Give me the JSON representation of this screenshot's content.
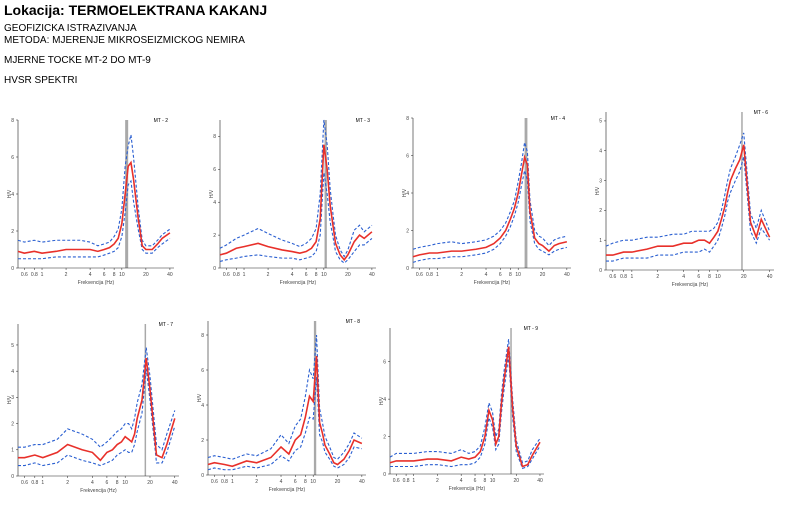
{
  "header": {
    "title": "Lokacija: TERMOELEKTRANA KAKANJ",
    "line1": "GEOFIZICKA ISTRAZIVANJA",
    "line2": "METODA: MJERENJE MIKROSEIZMICKOG NEMIRA",
    "line3": "MJERNE TOCKE MT-2 DO MT-9",
    "line4": "HVSR SPEKTRI"
  },
  "colors": {
    "mean": "#e8302a",
    "bounds": "#2a5fd1",
    "peak_band": "#9a9a9a",
    "axis": "#222222"
  },
  "axis_text": {
    "xlabel": "Frekvencija (Hz)",
    "ylabel": "H/V"
  },
  "chart_data": [
    {
      "type": "line",
      "name": "MT - 2",
      "xscale": "log",
      "xlim": [
        0.5,
        45
      ],
      "ylim": [
        0,
        8
      ],
      "xticks": [
        0.6,
        0.8,
        1,
        2,
        4,
        6,
        8,
        10,
        20,
        40
      ],
      "xticklabels": [
        "0.6",
        "0.8",
        "1",
        "2",
        "4",
        "6",
        "8",
        "10",
        "20",
        "40"
      ],
      "yticks": [
        0,
        2,
        4,
        6,
        8
      ],
      "peak": 11.5,
      "peak_band": [
        11,
        12
      ],
      "x": [
        0.5,
        0.6,
        0.8,
        1,
        1.5,
        2,
        3,
        4,
        5,
        6,
        7,
        8,
        9,
        10,
        11,
        12,
        13,
        14,
        16,
        18,
        20,
        24,
        28,
        32,
        40
      ],
      "series": [
        {
          "name": "",
          "role": "mean",
          "values": [
            0.9,
            0.8,
            0.9,
            0.8,
            0.9,
            1.0,
            1.0,
            1.0,
            0.9,
            1.0,
            1.1,
            1.3,
            1.6,
            2.4,
            4.0,
            5.5,
            5.7,
            4.8,
            2.7,
            1.2,
            1.0,
            1.0,
            1.3,
            1.6,
            1.9
          ]
        },
        {
          "name": "",
          "role": "upper",
          "values": [
            1.5,
            1.4,
            1.5,
            1.4,
            1.5,
            1.5,
            1.5,
            1.4,
            1.2,
            1.3,
            1.4,
            1.7,
            2.1,
            3.2,
            5.5,
            6.6,
            7.2,
            6.0,
            3.3,
            1.5,
            1.2,
            1.2,
            1.5,
            1.8,
            2.1
          ]
        },
        {
          "name": "",
          "role": "lower",
          "values": [
            0.5,
            0.5,
            0.5,
            0.5,
            0.6,
            0.6,
            0.6,
            0.6,
            0.6,
            0.7,
            0.8,
            0.9,
            1.1,
            1.7,
            3.0,
            4.5,
            4.7,
            3.6,
            2.1,
            1.0,
            0.8,
            0.8,
            1.1,
            1.3,
            1.6
          ]
        }
      ]
    },
    {
      "type": "line",
      "name": "MT - 3",
      "xscale": "log",
      "xlim": [
        0.5,
        45
      ],
      "ylim": [
        0,
        9
      ],
      "xticks": [
        0.6,
        0.8,
        1,
        2,
        4,
        6,
        8,
        10,
        20,
        40
      ],
      "xticklabels": [
        "0.6",
        "0.8",
        "1",
        "2",
        "4",
        "6",
        "8",
        "10",
        "20",
        "40"
      ],
      "yticks": [
        0,
        2,
        4,
        6,
        8
      ],
      "peak": 10.5,
      "peak_band": [
        10.2,
        10.9
      ],
      "x": [
        0.5,
        0.6,
        0.8,
        1,
        1.5,
        2,
        3,
        4,
        5,
        6,
        7,
        8,
        9,
        10,
        11,
        12,
        13,
        14,
        16,
        18,
        20,
        24,
        28,
        32,
        40
      ],
      "series": [
        {
          "name": "",
          "role": "mean",
          "values": [
            0.8,
            0.9,
            1.2,
            1.3,
            1.5,
            1.3,
            1.1,
            1.0,
            0.9,
            1.0,
            1.2,
            1.6,
            3.0,
            7.5,
            6.0,
            3.8,
            2.6,
            1.5,
            0.8,
            0.5,
            0.8,
            1.6,
            2.0,
            1.8,
            2.2
          ]
        },
        {
          "name": "",
          "role": "upper",
          "values": [
            1.2,
            1.4,
            1.8,
            2.0,
            2.4,
            2.1,
            1.7,
            1.5,
            1.3,
            1.5,
            1.8,
            2.4,
            4.5,
            9.0,
            7.5,
            4.8,
            3.3,
            2.0,
            1.1,
            0.7,
            1.1,
            2.3,
            2.6,
            2.2,
            2.6
          ]
        },
        {
          "name": "",
          "role": "lower",
          "values": [
            0.4,
            0.5,
            0.6,
            0.7,
            0.8,
            0.7,
            0.6,
            0.6,
            0.5,
            0.6,
            0.7,
            1.0,
            2.0,
            5.8,
            4.5,
            2.8,
            1.9,
            1.0,
            0.5,
            0.3,
            0.5,
            1.0,
            1.4,
            1.4,
            1.8
          ]
        }
      ]
    },
    {
      "type": "line",
      "name": "MT - 4",
      "xscale": "log",
      "xlim": [
        0.5,
        45
      ],
      "ylim": [
        0,
        8
      ],
      "xticks": [
        0.6,
        0.8,
        1,
        2,
        4,
        6,
        8,
        10,
        20,
        40
      ],
      "xticklabels": [
        "0.6",
        "0.8",
        "1",
        "2",
        "4",
        "6",
        "8",
        "10",
        "20",
        "40"
      ],
      "yticks": [
        0,
        2,
        4,
        6,
        8
      ],
      "peak": 12.5,
      "peak_band": [
        12,
        13
      ],
      "x": [
        0.5,
        0.6,
        0.8,
        1,
        1.5,
        2,
        3,
        4,
        5,
        6,
        7,
        8,
        9,
        10,
        11,
        12,
        13,
        14,
        16,
        18,
        20,
        24,
        28,
        32,
        40
      ],
      "series": [
        {
          "name": "",
          "role": "mean",
          "values": [
            0.6,
            0.7,
            0.8,
            0.8,
            0.9,
            0.9,
            1.0,
            1.1,
            1.3,
            1.6,
            2.0,
            2.6,
            3.2,
            4.0,
            5.0,
            5.9,
            5.5,
            3.0,
            1.6,
            1.3,
            1.2,
            0.9,
            1.2,
            1.3,
            1.4
          ]
        },
        {
          "name": "",
          "role": "upper",
          "values": [
            1.0,
            1.1,
            1.2,
            1.3,
            1.4,
            1.3,
            1.4,
            1.5,
            1.7,
            2.0,
            2.4,
            3.0,
            3.6,
            4.6,
            5.6,
            6.7,
            6.2,
            3.6,
            2.0,
            1.7,
            1.6,
            1.2,
            1.5,
            1.6,
            1.7
          ]
        },
        {
          "name": "",
          "role": "lower",
          "values": [
            0.3,
            0.4,
            0.5,
            0.5,
            0.6,
            0.6,
            0.7,
            0.8,
            1.0,
            1.3,
            1.7,
            2.2,
            2.8,
            3.5,
            4.4,
            5.2,
            4.7,
            2.5,
            1.3,
            1.0,
            0.9,
            0.7,
            0.9,
            1.0,
            1.1
          ]
        }
      ]
    },
    {
      "type": "line",
      "name": "MT - 6",
      "xscale": "log",
      "xlim": [
        0.5,
        45
      ],
      "ylim": [
        0,
        5.3
      ],
      "xticks": [
        0.6,
        0.8,
        1,
        2,
        4,
        6,
        8,
        10,
        20,
        40
      ],
      "xticklabels": [
        "0.6",
        "0.8",
        "1",
        "2",
        "4",
        "6",
        "8",
        "10",
        "20",
        "40"
      ],
      "yticks": [
        0,
        1,
        2,
        3,
        4,
        5
      ],
      "peak": 19,
      "peak_band": [
        18.7,
        19.3
      ],
      "x": [
        0.5,
        0.6,
        0.8,
        1,
        1.5,
        2,
        3,
        4,
        5,
        6,
        7,
        8,
        9,
        10,
        11,
        12,
        13,
        14,
        16,
        18,
        20,
        24,
        28,
        32,
        40
      ],
      "series": [
        {
          "name": "",
          "role": "mean",
          "values": [
            0.5,
            0.5,
            0.6,
            0.6,
            0.7,
            0.8,
            0.8,
            0.9,
            0.9,
            1.0,
            1.0,
            0.9,
            1.1,
            1.3,
            1.7,
            2.1,
            2.6,
            3.0,
            3.4,
            3.7,
            4.2,
            1.6,
            1.1,
            1.7,
            1.1
          ]
        },
        {
          "name": "",
          "role": "upper",
          "values": [
            0.8,
            0.9,
            1.0,
            1.0,
            1.1,
            1.1,
            1.2,
            1.2,
            1.3,
            1.3,
            1.3,
            1.3,
            1.4,
            1.6,
            2.0,
            2.5,
            3.0,
            3.4,
            3.8,
            4.2,
            4.6,
            1.9,
            1.4,
            2.0,
            1.3
          ]
        },
        {
          "name": "",
          "role": "lower",
          "values": [
            0.3,
            0.3,
            0.4,
            0.4,
            0.4,
            0.5,
            0.5,
            0.6,
            0.6,
            0.6,
            0.7,
            0.6,
            0.8,
            1.0,
            1.4,
            1.8,
            2.3,
            2.6,
            3.0,
            3.3,
            3.8,
            1.3,
            0.9,
            1.4,
            1.0
          ]
        }
      ]
    },
    {
      "type": "line",
      "name": "MT - 7",
      "xscale": "log",
      "xlim": [
        0.5,
        45
      ],
      "ylim": [
        0,
        5.8
      ],
      "xticks": [
        0.6,
        0.8,
        1,
        2,
        4,
        6,
        8,
        10,
        20,
        40
      ],
      "xticklabels": [
        "0.6",
        "0.8",
        "1",
        "2",
        "4",
        "6",
        "8",
        "10",
        "20",
        "40"
      ],
      "yticks": [
        0,
        1,
        2,
        3,
        4,
        5
      ],
      "peak": 17.5,
      "peak_band": [
        17.2,
        17.8
      ],
      "x": [
        0.5,
        0.6,
        0.8,
        1,
        1.5,
        2,
        3,
        4,
        5,
        6,
        7,
        8,
        9,
        10,
        11,
        12,
        13,
        14,
        16,
        18,
        20,
        24,
        28,
        32,
        40
      ],
      "series": [
        {
          "name": "",
          "role": "mean",
          "values": [
            0.7,
            0.7,
            0.8,
            0.7,
            0.9,
            1.2,
            1.0,
            0.9,
            0.6,
            0.9,
            1.0,
            1.2,
            1.3,
            1.5,
            1.4,
            1.3,
            1.6,
            2.2,
            2.9,
            4.5,
            3.3,
            0.8,
            0.7,
            1.2,
            2.2
          ]
        },
        {
          "name": "",
          "role": "upper",
          "values": [
            1.1,
            1.1,
            1.2,
            1.2,
            1.4,
            1.8,
            1.6,
            1.4,
            1.1,
            1.3,
            1.5,
            1.7,
            1.8,
            2.0,
            2.0,
            1.8,
            2.2,
            2.8,
            3.5,
            4.9,
            3.8,
            1.2,
            1.0,
            1.6,
            2.5
          ]
        },
        {
          "name": "",
          "role": "lower",
          "values": [
            0.4,
            0.4,
            0.5,
            0.4,
            0.5,
            0.8,
            0.6,
            0.5,
            0.4,
            0.5,
            0.6,
            0.8,
            0.9,
            1.0,
            0.9,
            0.9,
            1.2,
            1.7,
            2.4,
            4.1,
            2.9,
            0.5,
            0.5,
            0.9,
            1.9
          ]
        }
      ]
    },
    {
      "type": "line",
      "name": "MT - 8",
      "xscale": "log",
      "xlim": [
        0.5,
        45
      ],
      "ylim": [
        0,
        8.8
      ],
      "xticks": [
        0.6,
        0.8,
        1,
        2,
        4,
        6,
        8,
        10,
        20,
        40
      ],
      "xticklabels": [
        "0.6",
        "0.8",
        "1",
        "2",
        "4",
        "6",
        "8",
        "10",
        "20",
        "40"
      ],
      "yticks": [
        0,
        2,
        4,
        6,
        8
      ],
      "peak": 10.5,
      "peak_band": [
        10.2,
        10.9
      ],
      "x": [
        0.5,
        0.6,
        0.8,
        1,
        1.5,
        2,
        3,
        4,
        5,
        6,
        7,
        8,
        9,
        10,
        11,
        12,
        13,
        14,
        16,
        18,
        20,
        24,
        28,
        32,
        40
      ],
      "series": [
        {
          "name": "",
          "role": "mean",
          "values": [
            0.6,
            0.7,
            0.6,
            0.5,
            0.8,
            0.7,
            1.0,
            1.6,
            1.2,
            2.0,
            2.3,
            3.3,
            4.5,
            4.2,
            6.8,
            3.0,
            2.4,
            1.7,
            1.2,
            0.7,
            0.6,
            0.9,
            1.4,
            2.0,
            1.8
          ]
        },
        {
          "name": "",
          "role": "upper",
          "values": [
            1.0,
            1.1,
            1.0,
            0.9,
            1.2,
            1.1,
            1.5,
            2.3,
            1.8,
            2.8,
            3.2,
            4.5,
            6.0,
            5.5,
            8.0,
            3.8,
            3.0,
            2.2,
            1.6,
            1.0,
            0.9,
            1.3,
            1.8,
            2.4,
            2.1
          ]
        },
        {
          "name": "",
          "role": "lower",
          "values": [
            0.3,
            0.4,
            0.3,
            0.3,
            0.5,
            0.4,
            0.6,
            1.1,
            0.8,
            1.4,
            1.6,
            2.4,
            3.3,
            3.2,
            5.6,
            2.3,
            1.9,
            1.3,
            0.9,
            0.5,
            0.4,
            0.6,
            1.0,
            1.6,
            1.5
          ]
        }
      ]
    },
    {
      "type": "line",
      "name": "MT - 9",
      "xscale": "log",
      "xlim": [
        0.5,
        45
      ],
      "ylim": [
        0,
        7.8
      ],
      "xticks": [
        0.6,
        0.8,
        1,
        2,
        4,
        6,
        8,
        10,
        20,
        40
      ],
      "xticklabels": [
        "0.6",
        "0.8",
        "1",
        "2",
        "4",
        "6",
        "8",
        "10",
        "20",
        "40"
      ],
      "yticks": [
        0,
        2,
        4,
        6
      ],
      "peak": 17,
      "peak_band": [
        16.8,
        17.2
      ],
      "x": [
        0.5,
        0.6,
        0.8,
        1,
        1.5,
        2,
        3,
        4,
        5,
        6,
        7,
        8,
        9,
        10,
        11,
        12,
        13,
        14,
        16,
        18,
        20,
        24,
        28,
        32,
        40
      ],
      "series": [
        {
          "name": "",
          "role": "mean",
          "values": [
            0.6,
            0.7,
            0.7,
            0.7,
            0.8,
            0.8,
            0.7,
            0.9,
            0.8,
            0.9,
            1.2,
            2.0,
            3.4,
            2.9,
            1.6,
            2.0,
            3.8,
            5.0,
            6.8,
            3.5,
            1.5,
            0.4,
            0.5,
            1.0,
            1.7
          ]
        },
        {
          "name": "",
          "role": "upper",
          "values": [
            0.9,
            1.1,
            1.1,
            1.1,
            1.2,
            1.2,
            1.1,
            1.3,
            1.1,
            1.2,
            1.5,
            2.5,
            3.8,
            3.3,
            2.0,
            2.4,
            4.3,
            5.5,
            7.2,
            4.0,
            1.8,
            0.6,
            0.7,
            1.3,
            1.9
          ]
        },
        {
          "name": "",
          "role": "lower",
          "values": [
            0.4,
            0.4,
            0.4,
            0.4,
            0.5,
            0.5,
            0.4,
            0.5,
            0.5,
            0.6,
            0.9,
            1.6,
            3.0,
            2.5,
            1.3,
            1.6,
            3.3,
            4.5,
            6.3,
            3.0,
            1.2,
            0.3,
            0.4,
            0.8,
            1.5
          ]
        }
      ]
    }
  ]
}
